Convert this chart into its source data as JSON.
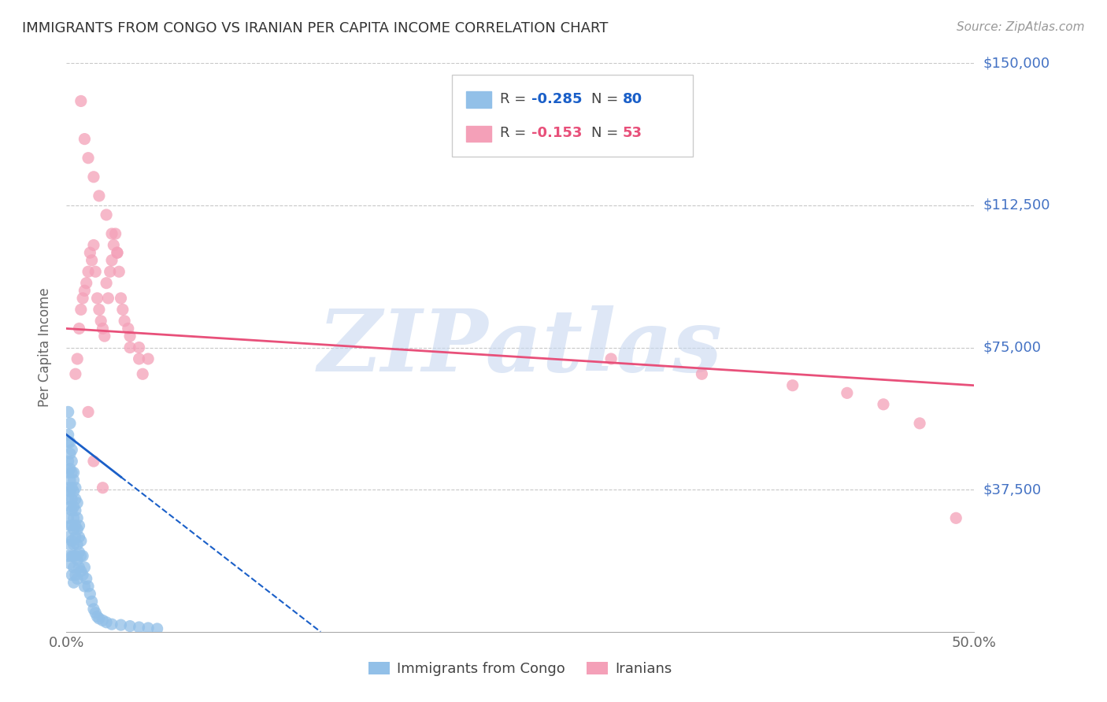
{
  "title": "IMMIGRANTS FROM CONGO VS IRANIAN PER CAPITA INCOME CORRELATION CHART",
  "source": "Source: ZipAtlas.com",
  "ylabel": "Per Capita Income",
  "xlim": [
    0.0,
    0.5
  ],
  "ylim": [
    0,
    150000
  ],
  "yticks": [
    0,
    37500,
    75000,
    112500,
    150000
  ],
  "ytick_labels": [
    "",
    "$37,500",
    "$75,000",
    "$112,500",
    "$150,000"
  ],
  "background_color": "#ffffff",
  "grid_color": "#c8c8c8",
  "title_color": "#333333",
  "right_label_color": "#4472c4",
  "watermark_text": "ZIPatlas",
  "watermark_color": "#c8d8f0",
  "congo_color": "#92c0e8",
  "iran_color": "#f4a0b8",
  "congo_line_color": "#1a5fc8",
  "iran_line_color": "#e8507a",
  "congo_scatter_x": [
    0.001,
    0.001,
    0.001,
    0.001,
    0.001,
    0.001,
    0.001,
    0.001,
    0.001,
    0.001,
    0.002,
    0.002,
    0.002,
    0.002,
    0.002,
    0.002,
    0.002,
    0.002,
    0.002,
    0.002,
    0.003,
    0.003,
    0.003,
    0.003,
    0.003,
    0.003,
    0.003,
    0.003,
    0.003,
    0.003,
    0.004,
    0.004,
    0.004,
    0.004,
    0.004,
    0.004,
    0.004,
    0.004,
    0.004,
    0.004,
    0.005,
    0.005,
    0.005,
    0.005,
    0.005,
    0.005,
    0.005,
    0.006,
    0.006,
    0.006,
    0.006,
    0.006,
    0.006,
    0.007,
    0.007,
    0.007,
    0.007,
    0.008,
    0.008,
    0.008,
    0.009,
    0.009,
    0.01,
    0.01,
    0.011,
    0.012,
    0.013,
    0.014,
    0.015,
    0.016,
    0.017,
    0.018,
    0.02,
    0.022,
    0.025,
    0.03,
    0.035,
    0.04,
    0.045,
    0.05
  ],
  "congo_scatter_y": [
    58000,
    52000,
    50000,
    45000,
    42000,
    38000,
    35000,
    30000,
    25000,
    20000,
    55000,
    50000,
    47000,
    43000,
    40000,
    37000,
    33000,
    28000,
    23000,
    18000,
    48000,
    45000,
    42000,
    38000,
    35000,
    32000,
    28000,
    24000,
    20000,
    15000,
    42000,
    40000,
    37000,
    33000,
    30000,
    27000,
    23000,
    20000,
    17000,
    13000,
    38000,
    35000,
    32000,
    28000,
    25000,
    20000,
    15000,
    34000,
    30000,
    27000,
    23000,
    19000,
    14000,
    28000,
    25000,
    21000,
    17000,
    24000,
    20000,
    16000,
    20000,
    15000,
    17000,
    12000,
    14000,
    12000,
    10000,
    8000,
    6000,
    5000,
    4000,
    3500,
    3000,
    2500,
    2000,
    1800,
    1500,
    1200,
    1000,
    800
  ],
  "iran_scatter_x": [
    0.005,
    0.006,
    0.007,
    0.008,
    0.009,
    0.01,
    0.011,
    0.012,
    0.013,
    0.014,
    0.015,
    0.016,
    0.017,
    0.018,
    0.019,
    0.02,
    0.021,
    0.022,
    0.023,
    0.024,
    0.025,
    0.026,
    0.027,
    0.028,
    0.029,
    0.03,
    0.031,
    0.032,
    0.034,
    0.035,
    0.04,
    0.042,
    0.008,
    0.01,
    0.012,
    0.015,
    0.018,
    0.022,
    0.025,
    0.028,
    0.035,
    0.04,
    0.045,
    0.3,
    0.35,
    0.4,
    0.43,
    0.45,
    0.47,
    0.49,
    0.012,
    0.015,
    0.02
  ],
  "iran_scatter_y": [
    68000,
    72000,
    80000,
    85000,
    88000,
    90000,
    92000,
    95000,
    100000,
    98000,
    102000,
    95000,
    88000,
    85000,
    82000,
    80000,
    78000,
    92000,
    88000,
    95000,
    98000,
    102000,
    105000,
    100000,
    95000,
    88000,
    85000,
    82000,
    80000,
    75000,
    72000,
    68000,
    140000,
    130000,
    125000,
    120000,
    115000,
    110000,
    105000,
    100000,
    78000,
    75000,
    72000,
    72000,
    68000,
    65000,
    63000,
    60000,
    55000,
    30000,
    58000,
    45000,
    38000
  ],
  "congo_trend_x": [
    0.0,
    0.14
  ],
  "congo_trend_y": [
    52000,
    0
  ],
  "congo_trend_solid_end": 0.03,
  "iran_trend_x": [
    0.0,
    0.5
  ],
  "iran_trend_y": [
    80000,
    65000
  ]
}
